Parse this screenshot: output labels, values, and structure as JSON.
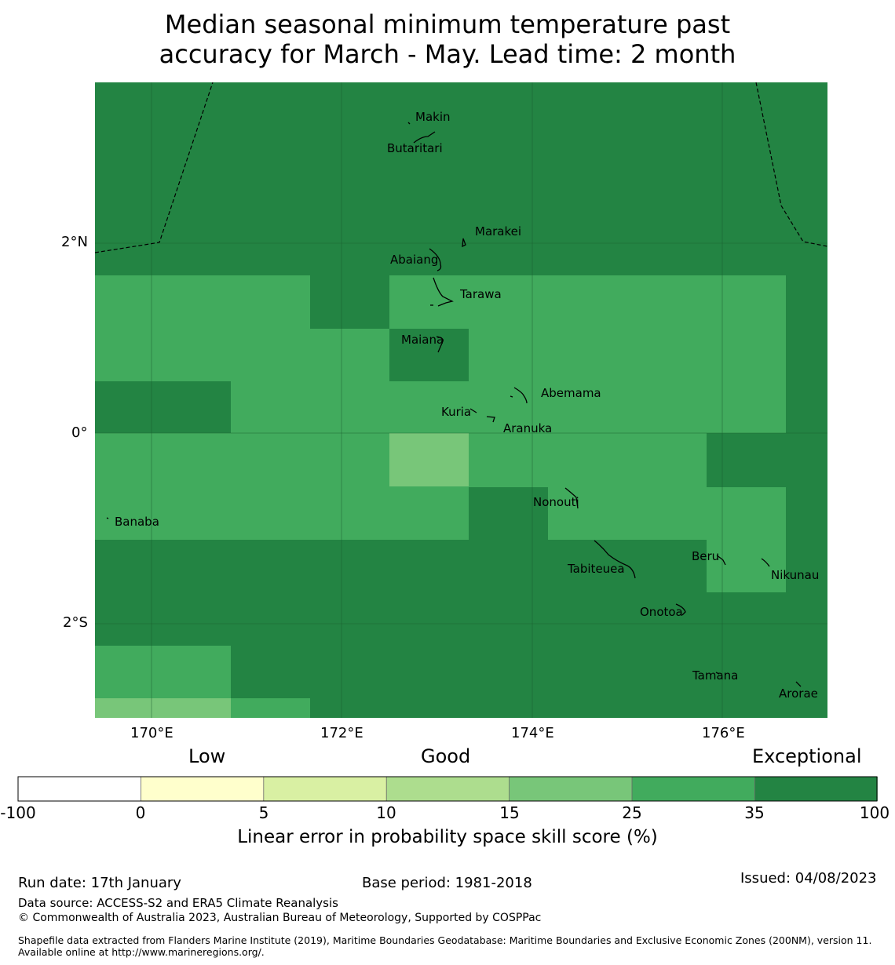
{
  "title": {
    "line1": "Median seasonal minimum temperature past",
    "line2": "accuracy for March - May. Lead time: 2 month"
  },
  "colors": {
    "exceptional": "#238443",
    "c25_35": "#41ab5d",
    "c15_25": "#78c679",
    "c10_15": "#addd8e",
    "c5_10": "#d9f0a3",
    "c0_5": "#ffffcc",
    "neg": "#ffffff"
  },
  "map": {
    "lat_labels": [
      "2°N",
      "0°",
      "2°S"
    ],
    "lon_labels": [
      "170°E",
      "172°E",
      "174°E",
      "176°E"
    ],
    "lon_range": [
      169.4,
      177.1
    ],
    "lat_range": [
      -3.0,
      3.7
    ],
    "islands": [
      {
        "name": "Makin",
        "lon": 173.0,
        "lat": 3.38
      },
      {
        "name": "Butaritari",
        "lon": 172.8,
        "lat": 3.05
      },
      {
        "name": "Marakei",
        "lon": 173.4,
        "lat": 2.1
      },
      {
        "name": "Abaiang",
        "lon": 172.8,
        "lat": 1.83
      },
      {
        "name": "Tarawa",
        "lon": 173.1,
        "lat": 1.4
      },
      {
        "name": "Maiana",
        "lon": 173.0,
        "lat": 0.93
      },
      {
        "name": "Abemama",
        "lon": 173.9,
        "lat": 0.4
      },
      {
        "name": "Kuria",
        "lon": 173.4,
        "lat": 0.22
      },
      {
        "name": "Aranuka",
        "lon": 173.6,
        "lat": 0.16
      },
      {
        "name": "Nonouti",
        "lon": 174.4,
        "lat": -0.68
      },
      {
        "name": "Banaba",
        "lon": 169.5,
        "lat": -0.86
      },
      {
        "name": "Tabiteuea",
        "lon": 174.8,
        "lat": -1.4
      },
      {
        "name": "Beru",
        "lon": 176.0,
        "lat": -1.33
      },
      {
        "name": "Nikunau",
        "lon": 176.45,
        "lat": -1.35
      },
      {
        "name": "Onotoa",
        "lon": 175.55,
        "lat": -1.8
      },
      {
        "name": "Tamana",
        "lon": 175.98,
        "lat": -2.5
      },
      {
        "name": "Arorae",
        "lon": 176.82,
        "lat": -2.64
      }
    ]
  },
  "colorbar": {
    "categories": [
      "Low",
      "Good",
      "Exceptional"
    ],
    "ticks": [
      "-100",
      "0",
      "5",
      "10",
      "15",
      "25",
      "35",
      "100"
    ],
    "label": "Linear error in probability space skill score (%)"
  },
  "footer": {
    "run_date": "Run date: 17th January",
    "base_period": "Base period: 1981-2018",
    "issued": "Issued: 04/08/2023",
    "data_source": "Data source: ACCESS-S2 and ERA5 Climate Reanalysis",
    "copyright": "© Commonwealth of Australia 2023, Australian Bureau of Meteorology, Supported by COSPPac",
    "shapefile": "Shapefile data extracted from Flanders Marine Institute (2019), Maritime Boundaries Geodatabase: Maritime Boundaries and Exclusive Economic Zones (200NM), version 11. Available online at http://www.marineregions.org/."
  }
}
